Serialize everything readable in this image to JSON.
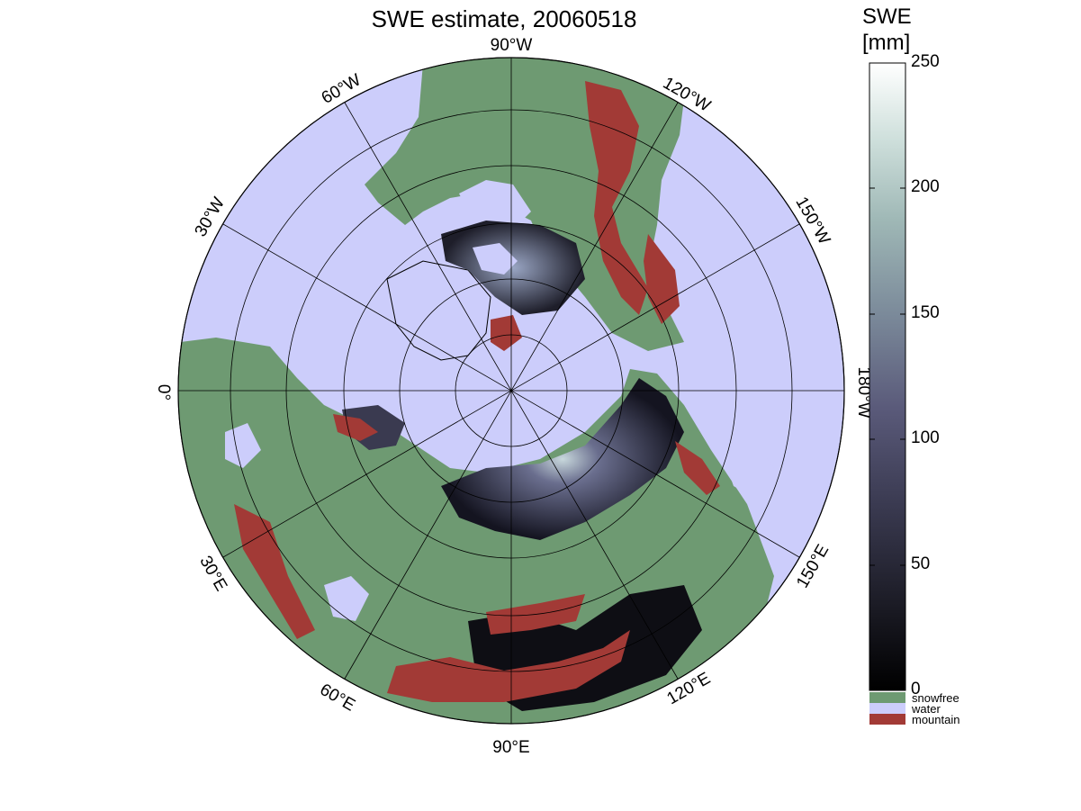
{
  "title": "SWE estimate, 20060518",
  "colorbar": {
    "title_line1": "SWE",
    "title_line2": "[mm]",
    "min": 0,
    "max": 250,
    "ticks": [
      "0",
      "50",
      "100",
      "150",
      "200",
      "250"
    ],
    "colors_low_to_high": [
      "#000000",
      "#1c1c26",
      "#3b3b52",
      "#5a5a7a",
      "#7b8a9a",
      "#9fb8b6",
      "#cfe0dc",
      "#ffffff"
    ]
  },
  "categories": [
    {
      "label": "snowfree",
      "color": "#6e9a72"
    },
    {
      "label": "water",
      "color": "#cccdfb"
    },
    {
      "label": "mountain",
      "color": "#a23a36"
    }
  ],
  "map": {
    "projection": "north polar stereographic",
    "ocean_color": "#cccdfb",
    "land_color": "#6e9a72",
    "mountain_color": "#a23a36",
    "snow_dark_color": "#2a2a3a",
    "longitude_labels": [
      "90°W",
      "120°W",
      "150°W",
      "180°W",
      "150°E",
      "120°E",
      "90°E",
      "60°E",
      "30°E",
      "0°",
      "30°W",
      "60°W"
    ]
  }
}
